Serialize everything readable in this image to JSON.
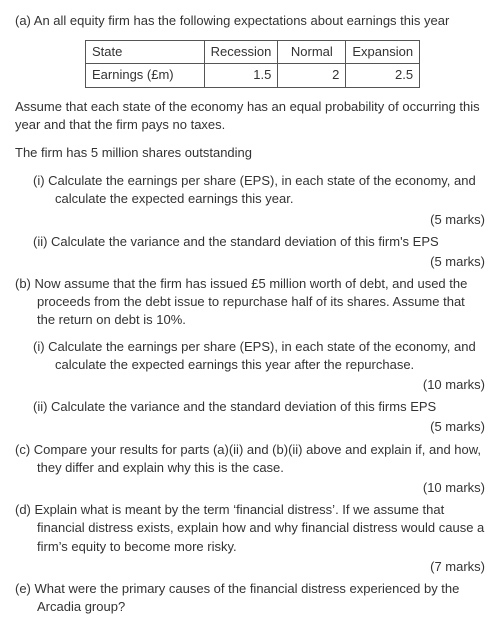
{
  "a_intro": "(a) An all equity firm has the following expectations about earnings this year",
  "table": {
    "row_label": "State",
    "col1": "Recession",
    "col2": "Normal",
    "col3": "Expansion",
    "row2_label": "Earnings (£m)",
    "v1": "1.5",
    "v2": "2",
    "v3": "2.5"
  },
  "assume1": "Assume that each state of the economy has an equal probability of occurring this year and that the firm pays no taxes.",
  "assume2": "The firm has 5 million shares outstanding",
  "a_i": "(i) Calculate the earnings per share (EPS), in each state of the economy, and calculate the expected earnings this year.",
  "a_i_marks": "(5 marks)",
  "a_ii": "(ii) Calculate the variance and the standard deviation of this firm's EPS",
  "a_ii_marks": "(5 marks)",
  "b": "(b) Now assume that the firm has issued £5 million worth of debt, and used the proceeds from the debt issue to repurchase half of its shares. Assume that the return on debt is 10%.",
  "b_i": "(i) Calculate the earnings per share (EPS), in each state of the economy, and calculate the expected earnings this year after the repurchase.",
  "b_i_marks": "(10 marks)",
  "b_ii": "(ii) Calculate the variance and the standard deviation of this firms EPS",
  "b_ii_marks": "(5 marks)",
  "c": "(c) Compare your results for parts (a)(ii) and (b)(ii) above and explain if, and how, they differ and explain why this is the case.",
  "c_marks": "(10 marks)",
  "d": "(d) Explain what is meant by the term ‘financial distress’. If we assume that financial distress exists, explain how and why financial distress would cause a firm’s equity to become more risky.",
  "d_marks": "(7 marks)",
  "e": "(e) What were the primary causes of the financial distress experienced by the Arcadia group?"
}
